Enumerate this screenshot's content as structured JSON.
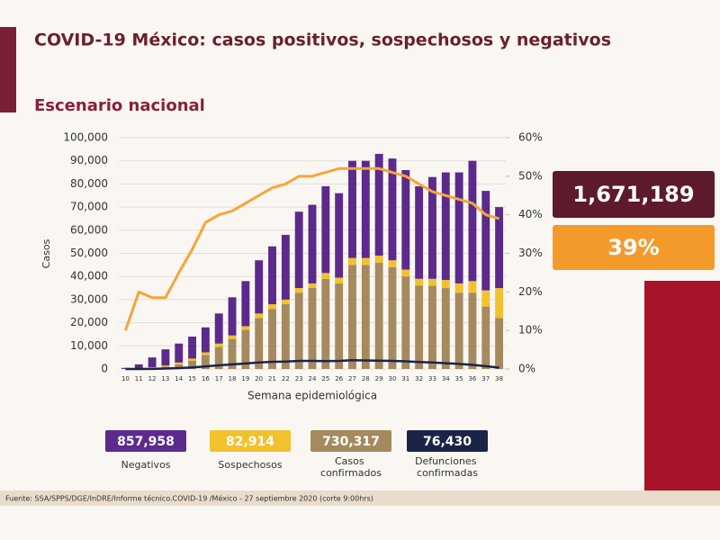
{
  "chart_data": {
    "type": "bar",
    "title": "COVID-19 México: casos positivos, sospechosos y negativos",
    "subtitle": "Escenario nacional",
    "y_label": "Casos",
    "x_label": "Semana epidemiológica",
    "categories": [
      "10",
      "11",
      "12",
      "13",
      "14",
      "15",
      "16",
      "17",
      "18",
      "19",
      "20",
      "21",
      "22",
      "23",
      "24",
      "25",
      "26",
      "27",
      "28",
      "29",
      "30",
      "31",
      "32",
      "33",
      "34",
      "35",
      "36",
      "37",
      "38"
    ],
    "ylim": [
      0,
      100000
    ],
    "yticks": [
      0,
      {
        "value": 10000,
        "label": "10,000"
      },
      {
        "value": 20000,
        "label": "20,000"
      },
      {
        "value": 30000,
        "label": "30,000"
      },
      {
        "value": 40000,
        "label": "40,000"
      },
      {
        "value": 50000,
        "label": "50,000"
      },
      {
        "value": 60000,
        "label": "60,000"
      },
      {
        "value": 70000,
        "label": "70,000"
      },
      {
        "value": 80000,
        "label": "80,000"
      },
      {
        "value": 90000,
        "label": "90,000"
      },
      {
        "value": 100000,
        "label": "100,000"
      }
    ],
    "y2lim": [
      0,
      60
    ],
    "y2ticks": [
      {
        "value": 0,
        "label": "0%"
      },
      {
        "value": 10,
        "label": "10%"
      },
      {
        "value": 20,
        "label": "20%"
      },
      {
        "value": 30,
        "label": "30%"
      },
      {
        "value": 40,
        "label": "40%"
      },
      {
        "value": 50,
        "label": "50%"
      },
      {
        "value": 60,
        "label": "60%"
      }
    ],
    "grid": true,
    "series": [
      {
        "name": "Negativos",
        "type": "bar",
        "color": "#5b2a8c",
        "values": [
          450,
          1700,
          4200,
          7000,
          8200,
          9500,
          10800,
          13000,
          16500,
          19500,
          23000,
          25000,
          28000,
          33000,
          34000,
          37500,
          36500,
          42000,
          42000,
          44000,
          44000,
          43000,
          40000,
          44000,
          46500,
          48000,
          52000,
          43000,
          35000
        ],
        "total": {
          "value": 857958,
          "label": "857,958"
        }
      },
      {
        "name": "Sospechosos",
        "type": "bar",
        "color": "#f2c12e",
        "values": [
          0,
          100,
          300,
          500,
          800,
          1000,
          1200,
          1500,
          1500,
          1500,
          2000,
          2000,
          2000,
          2000,
          2000,
          2500,
          2500,
          3000,
          3000,
          3000,
          3000,
          3000,
          3000,
          3000,
          3500,
          4000,
          5000,
          7000,
          13000
        ],
        "total": {
          "value": 82914,
          "label": "82,914"
        }
      },
      {
        "name": "Casos confirmados",
        "type": "bar",
        "color": "#a58a5f",
        "values": [
          50,
          200,
          500,
          1000,
          2000,
          3500,
          6000,
          9500,
          13000,
          17000,
          22000,
          26000,
          28000,
          33000,
          35000,
          39000,
          37000,
          45000,
          45000,
          46000,
          44000,
          40000,
          36000,
          36000,
          35000,
          33000,
          33000,
          27000,
          22000
        ],
        "total": {
          "value": 730317,
          "label": "730,317"
        }
      },
      {
        "name": "Defunciones confirmadas",
        "type": "line",
        "color": "#1b2447",
        "values": [
          0,
          0,
          50,
          200,
          400,
          700,
          1100,
          1600,
          2000,
          2400,
          2800,
          3100,
          3200,
          3500,
          3500,
          3400,
          3500,
          3800,
          3700,
          3600,
          3500,
          3300,
          3000,
          2800,
          2500,
          2200,
          1800,
          1200,
          600
        ],
        "total": {
          "value": 76430,
          "label": "76,430"
        }
      },
      {
        "type": "line",
        "axis": "y2",
        "color": "#f5a53a",
        "values": [
          10,
          20,
          18.5,
          18.5,
          25,
          31,
          38,
          40,
          41,
          43,
          45,
          47,
          48,
          50,
          50,
          51,
          52,
          52,
          52,
          52,
          51,
          50,
          48,
          46,
          45,
          44,
          43,
          40,
          39
        ]
      }
    ]
  },
  "panel": {
    "total": {
      "value": 1671189,
      "label": "1,671,189"
    },
    "positivity": {
      "value": 39,
      "label": "39%"
    }
  },
  "source": "Fuente: SSA/SPPS/DGE/InDRE/Informe técnico.COVID-19 /México - 27 septiembre 2020 (corte 9:00hrs)"
}
